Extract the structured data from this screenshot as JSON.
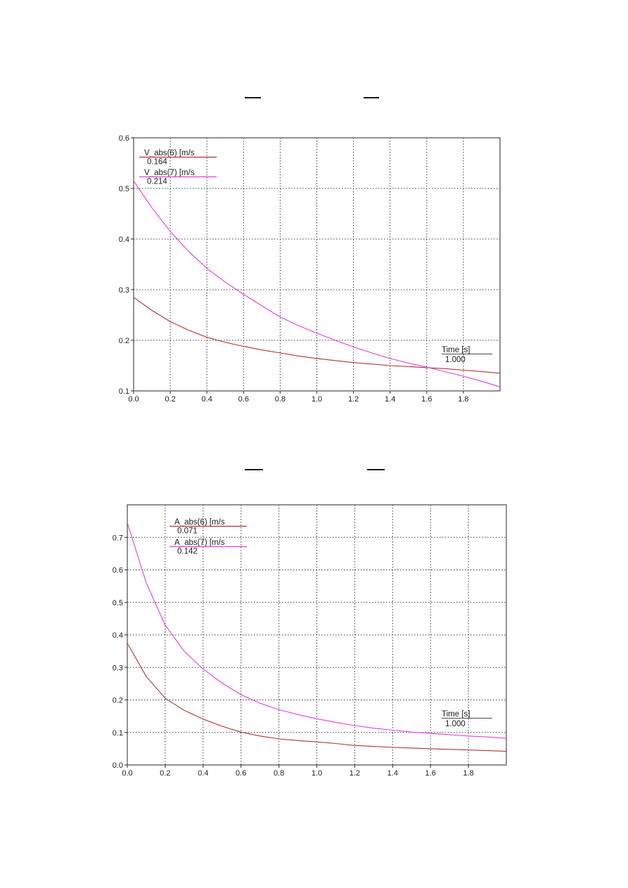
{
  "page": {
    "background": "#ffffff",
    "text_color": "#1c1c1c",
    "axis_color": "#4a4a4a",
    "grid_color": "#3a3a3a"
  },
  "chart_data": [
    {
      "type": "line",
      "title": "",
      "xlabel": "",
      "ylabel": "",
      "cursor": {
        "label": "Time [s]",
        "value": "1.000"
      },
      "xlim": [
        0.0,
        2.0
      ],
      "ylim": [
        0.1,
        0.6
      ],
      "xticks": [
        0.0,
        0.2,
        0.4,
        0.6,
        0.8,
        1.0,
        1.2,
        1.4,
        1.6,
        1.8
      ],
      "yticks": [
        0.1,
        0.2,
        0.3,
        0.4,
        0.5,
        0.6
      ],
      "grid": true,
      "legend_position": "top-left",
      "x": [
        0.0,
        0.1,
        0.2,
        0.3,
        0.4,
        0.5,
        0.6,
        0.7,
        0.8,
        0.9,
        1.0,
        1.1,
        1.2,
        1.3,
        1.4,
        1.5,
        1.6,
        1.7,
        1.8,
        1.9,
        2.0
      ],
      "series": [
        {
          "name": "V_abs(6) [m/s",
          "cursor_value": "0.164",
          "color": "#b03434",
          "values": [
            0.285,
            0.259,
            0.237,
            0.22,
            0.206,
            0.196,
            0.188,
            0.181,
            0.175,
            0.169,
            0.164,
            0.16,
            0.156,
            0.153,
            0.15,
            0.148,
            0.146,
            0.144,
            0.141,
            0.138,
            0.135
          ]
        },
        {
          "name": "V_abs(7) [m/s",
          "cursor_value": "0.214",
          "color": "#e040e0",
          "values": [
            0.515,
            0.462,
            0.415,
            0.376,
            0.342,
            0.315,
            0.291,
            0.268,
            0.246,
            0.229,
            0.214,
            0.2,
            0.187,
            0.175,
            0.164,
            0.155,
            0.147,
            0.138,
            0.129,
            0.119,
            0.108
          ]
        }
      ]
    },
    {
      "type": "line",
      "title": "",
      "xlabel": "",
      "ylabel": "",
      "cursor": {
        "label": "Time [s]",
        "value": "1.000"
      },
      "xlim": [
        0.0,
        2.0
      ],
      "ylim": [
        0.0,
        0.8
      ],
      "xticks": [
        0.0,
        0.2,
        0.4,
        0.6,
        0.8,
        1.0,
        1.2,
        1.4,
        1.6,
        1.8
      ],
      "yticks": [
        0.0,
        0.1,
        0.2,
        0.3,
        0.4,
        0.5,
        0.6,
        0.7
      ],
      "grid": true,
      "legend_position": "top-left",
      "x": [
        0.0,
        0.1,
        0.2,
        0.3,
        0.4,
        0.5,
        0.6,
        0.7,
        0.8,
        0.9,
        1.0,
        1.1,
        1.2,
        1.3,
        1.4,
        1.5,
        1.6,
        1.7,
        1.8,
        1.9,
        2.0
      ],
      "series": [
        {
          "name": "A_abs(6) [m/s",
          "cursor_value": "0.071",
          "color": "#b03434",
          "values": [
            0.375,
            0.272,
            0.205,
            0.168,
            0.141,
            0.119,
            0.101,
            0.089,
            0.08,
            0.075,
            0.071,
            0.066,
            0.06,
            0.057,
            0.054,
            0.052,
            0.05,
            0.048,
            0.046,
            0.044,
            0.042
          ]
        },
        {
          "name": "A_abs(7) [m/s",
          "cursor_value": "0.142",
          "color": "#e040e0",
          "values": [
            0.745,
            0.56,
            0.43,
            0.35,
            0.295,
            0.252,
            0.216,
            0.19,
            0.17,
            0.155,
            0.142,
            0.131,
            0.121,
            0.113,
            0.107,
            0.101,
            0.097,
            0.093,
            0.089,
            0.086,
            0.082
          ]
        }
      ]
    }
  ]
}
